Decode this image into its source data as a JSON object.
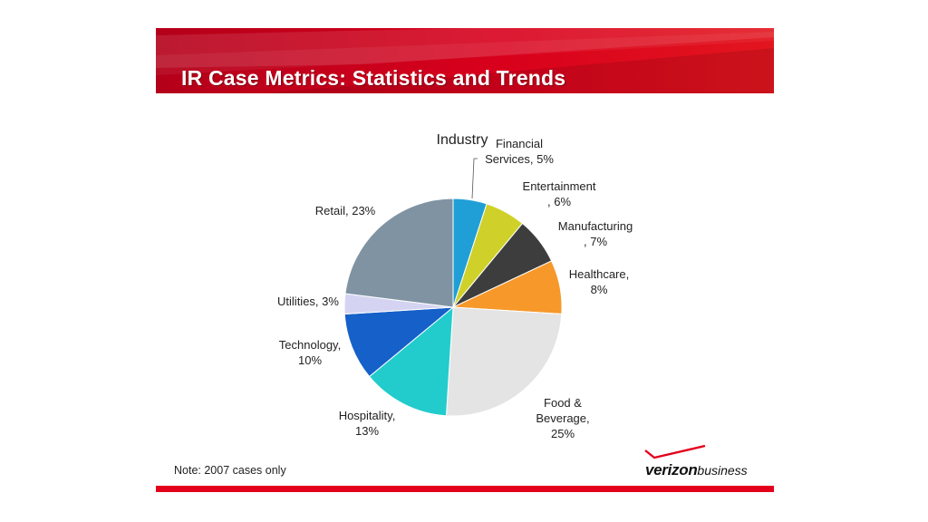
{
  "slide": {
    "title": "IR Case Metrics: Statistics and Trends",
    "note": "Note: 2007 cases only",
    "brand": {
      "main": "verizon",
      "sub": "business"
    },
    "accent_color": "#e3001b"
  },
  "chart_data": {
    "type": "pie",
    "title": "Industry",
    "slices": [
      {
        "label": "Financial Services, 5%",
        "value": 5,
        "color": "#1f9fd6"
      },
      {
        "label": "Entertainment, 6%",
        "value": 6,
        "color": "#cfd12a"
      },
      {
        "label": "Manufacturing, 7%",
        "value": 7,
        "color": "#3d3d3d"
      },
      {
        "label": "Healthcare, 8%",
        "value": 8,
        "color": "#f7982a"
      },
      {
        "label": "Food & Beverage, 25%",
        "value": 25,
        "color": "#e4e4e4"
      },
      {
        "label": "Hospitality, 13%",
        "value": 13,
        "color": "#22cccc"
      },
      {
        "label": "Technology, 10%",
        "value": 10,
        "color": "#1560c9"
      },
      {
        "label": "Utilities, 3%",
        "value": 3,
        "color": "#d4d4f2"
      },
      {
        "label": "Retail, 23%",
        "value": 23,
        "color": "#7f93a3"
      }
    ],
    "label_lines": [
      [
        "Financial",
        "Services, 5%"
      ],
      [
        "Entertainment",
        ", 6%"
      ],
      [
        "Manufacturing",
        ", 7%"
      ],
      [
        "Healthcare,",
        "8%"
      ],
      [
        "Food &",
        "Beverage,",
        "25%"
      ],
      [
        "Hospitality,",
        "13%"
      ],
      [
        "Technology,",
        "10%"
      ],
      [
        "Utilities, 3%"
      ],
      [
        "Retail, 23%"
      ]
    ],
    "start_angle_deg": 0,
    "direction": "clockwise",
    "legend": "none"
  }
}
